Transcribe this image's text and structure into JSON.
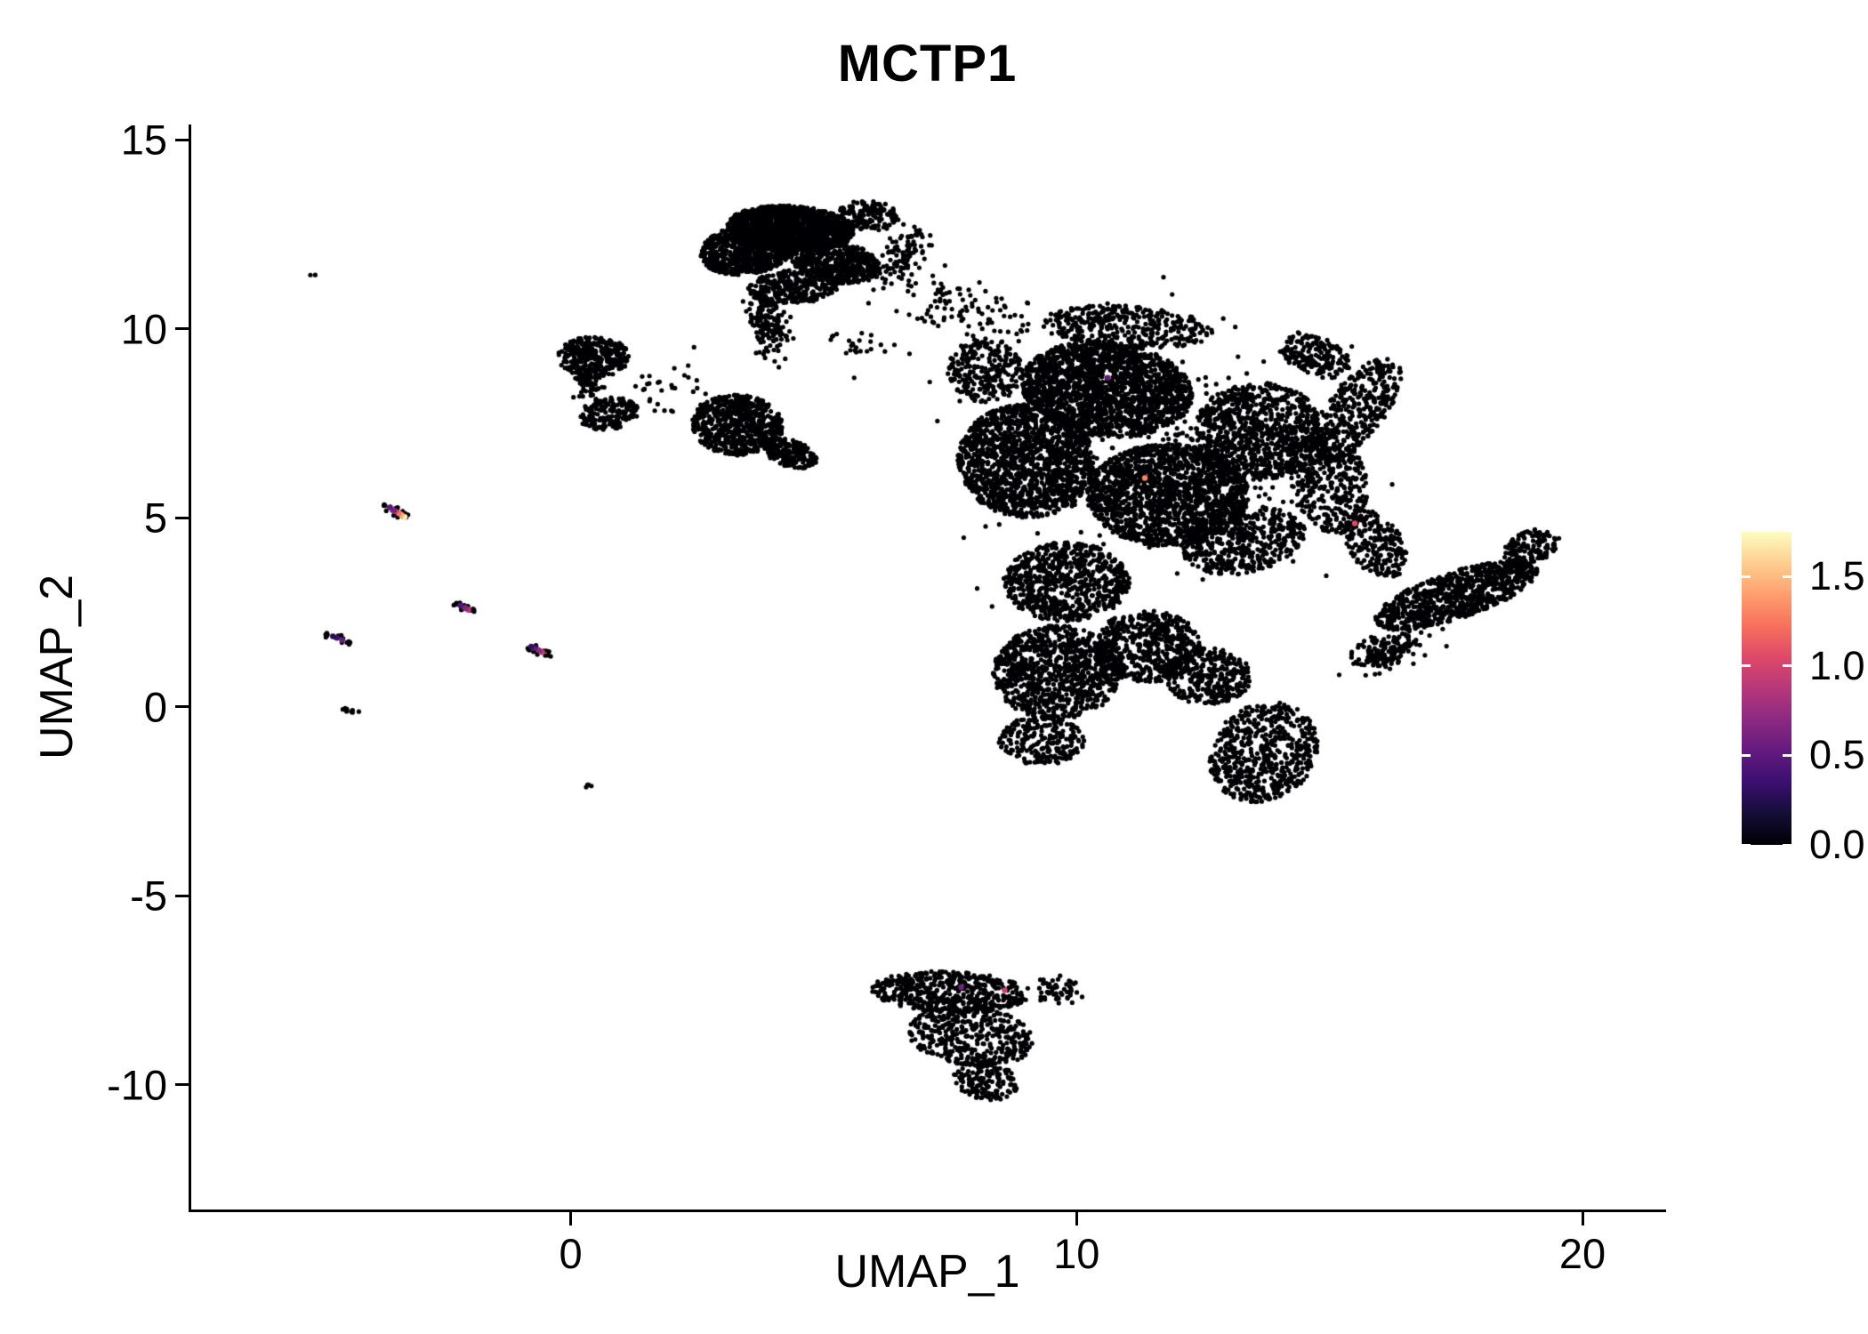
{
  "title": "MCTP1",
  "axes": {
    "xlabel": "UMAP_1",
    "ylabel": "UMAP_2",
    "x_ticks": [
      {
        "label": "0",
        "value": 0
      },
      {
        "label": "10",
        "value": 10
      },
      {
        "label": "20",
        "value": 20
      }
    ],
    "y_ticks": [
      {
        "label": "15",
        "value": 15
      },
      {
        "label": "10",
        "value": 10
      },
      {
        "label": "5",
        "value": 5
      },
      {
        "label": "0",
        "value": 0
      },
      {
        "label": "-5",
        "value": -5
      },
      {
        "label": "-10",
        "value": -10
      }
    ]
  },
  "colorbar": {
    "tick_labels": [
      {
        "label": "1.5",
        "value": 1.5
      },
      {
        "label": "1.0",
        "value": 1.0
      },
      {
        "label": "0.5",
        "value": 0.5
      },
      {
        "label": "0.0",
        "value": 0.0
      }
    ],
    "min": 0,
    "max": 1.75,
    "colormap": "magma",
    "stops": [
      "#000004",
      "#140e36",
      "#3b0f70",
      "#641a80",
      "#8c2981",
      "#b73779",
      "#de4968",
      "#f7705c",
      "#fe9f6d",
      "#fece91",
      "#fcfdbf"
    ]
  },
  "chart_data": {
    "type": "scatter",
    "title": "MCTP1",
    "xlabel": "UMAP_1",
    "ylabel": "UMAP_2",
    "xlim": [
      -7.5,
      21.6
    ],
    "ylim": [
      -13.3,
      15.4
    ],
    "grid": false,
    "legend_position": "right",
    "point_color_default": "#000004",
    "point_radius_px": 2.6,
    "note": "Single-cell UMAP feature plot; dense cell clusters approximated by generative blob parameters (data units). Nearly all cells have expression 0 (black); colored cells listed in expressing_points.",
    "clusters": [
      {
        "cx": 4.35,
        "cy": 12.65,
        "rx": 1.25,
        "ry": 0.6,
        "rot": -5,
        "n": 1500,
        "dist": "u"
      },
      {
        "cx": 3.5,
        "cy": 12.1,
        "rx": 0.95,
        "ry": 0.65,
        "rot": 15,
        "n": 800,
        "dist": "u"
      },
      {
        "cx": 5.2,
        "cy": 11.8,
        "rx": 0.95,
        "ry": 0.55,
        "rot": -20,
        "n": 550,
        "dist": "u"
      },
      {
        "cx": 4.4,
        "cy": 11.1,
        "rx": 0.9,
        "ry": 0.45,
        "rot": 5,
        "n": 300,
        "dist": "u"
      },
      {
        "cx": 5.9,
        "cy": 13.0,
        "rx": 0.6,
        "ry": 0.4,
        "rot": -10,
        "n": 150,
        "dist": "u"
      },
      {
        "cx": 3.9,
        "cy": 10.1,
        "rx": 0.4,
        "ry": 0.85,
        "rot": 10,
        "n": 150,
        "dist": "g"
      },
      {
        "cx": 6.55,
        "cy": 11.9,
        "rx": 0.45,
        "ry": 0.95,
        "rot": -25,
        "n": 110,
        "dist": "g"
      },
      {
        "cx": 7.2,
        "cy": 10.7,
        "rx": 0.8,
        "ry": 0.8,
        "rot": 0,
        "n": 45,
        "dist": "g"
      },
      {
        "cx": 5.8,
        "cy": 9.6,
        "rx": 0.8,
        "ry": 0.6,
        "rot": 0,
        "n": 25,
        "dist": "g"
      },
      {
        "cx": 0.45,
        "cy": 9.25,
        "rx": 0.7,
        "ry": 0.55,
        "rot": 0,
        "n": 340,
        "dist": "u"
      },
      {
        "cx": 0.75,
        "cy": 7.75,
        "rx": 0.6,
        "ry": 0.42,
        "rot": 15,
        "n": 170,
        "dist": "u"
      },
      {
        "cx": 0.35,
        "cy": 8.5,
        "rx": 0.3,
        "ry": 0.4,
        "rot": 0,
        "n": 55,
        "dist": "g"
      },
      {
        "cx": 3.3,
        "cy": 7.45,
        "rx": 0.9,
        "ry": 0.8,
        "rot": -10,
        "n": 650,
        "dist": "u"
      },
      {
        "cx": 4.35,
        "cy": 6.7,
        "rx": 0.55,
        "ry": 0.35,
        "rot": -25,
        "n": 180,
        "dist": "u"
      },
      {
        "cx": 1.9,
        "cy": 8.4,
        "rx": 0.9,
        "ry": 0.9,
        "rot": 0,
        "n": 30,
        "dist": "g"
      },
      {
        "cx": 10.6,
        "cy": 8.4,
        "rx": 1.7,
        "ry": 1.25,
        "rot": -12,
        "n": 1900,
        "dist": "u"
      },
      {
        "cx": 9.0,
        "cy": 6.5,
        "rx": 1.35,
        "ry": 1.5,
        "rot": 8,
        "n": 1500,
        "dist": "u"
      },
      {
        "cx": 11.8,
        "cy": 5.6,
        "rx": 1.6,
        "ry": 1.35,
        "rot": 0,
        "n": 1600,
        "dist": "u"
      },
      {
        "cx": 13.6,
        "cy": 7.3,
        "rx": 1.25,
        "ry": 1.3,
        "rot": 0,
        "n": 900,
        "dist": "u"
      },
      {
        "cx": 11.0,
        "cy": 10.05,
        "rx": 1.7,
        "ry": 0.55,
        "rot": -5,
        "n": 380,
        "dist": "u"
      },
      {
        "cx": 8.2,
        "cy": 8.9,
        "rx": 0.75,
        "ry": 0.85,
        "rot": 0,
        "n": 260,
        "dist": "u"
      },
      {
        "cx": 13.3,
        "cy": 4.4,
        "rx": 1.25,
        "ry": 0.85,
        "rot": 20,
        "n": 520,
        "dist": "u"
      },
      {
        "cx": 15.0,
        "cy": 5.9,
        "rx": 0.75,
        "ry": 1.35,
        "rot": 8,
        "n": 380,
        "dist": "u"
      },
      {
        "cx": 15.5,
        "cy": 7.8,
        "rx": 0.6,
        "ry": 1.6,
        "rot": -28,
        "n": 380,
        "dist": "u"
      },
      {
        "cx": 14.7,
        "cy": 9.3,
        "rx": 0.8,
        "ry": 0.5,
        "rot": -35,
        "n": 180,
        "dist": "u"
      },
      {
        "cx": 9.8,
        "cy": 3.3,
        "rx": 1.25,
        "ry": 1.05,
        "rot": 0,
        "n": 750,
        "dist": "u"
      },
      {
        "cx": 9.6,
        "cy": 0.9,
        "rx": 1.25,
        "ry": 1.25,
        "rot": 0,
        "n": 950,
        "dist": "u"
      },
      {
        "cx": 11.4,
        "cy": 1.6,
        "rx": 1.05,
        "ry": 0.95,
        "rot": 0,
        "n": 550,
        "dist": "u"
      },
      {
        "cx": 12.6,
        "cy": 0.8,
        "rx": 0.85,
        "ry": 0.75,
        "rot": 0,
        "n": 320,
        "dist": "u"
      },
      {
        "cx": 13.7,
        "cy": -1.2,
        "rx": 1.05,
        "ry": 1.35,
        "rot": -18,
        "n": 600,
        "dist": "u"
      },
      {
        "cx": 15.9,
        "cy": 4.3,
        "rx": 0.55,
        "ry": 0.95,
        "rot": 22,
        "n": 220,
        "dist": "u"
      },
      {
        "cx": 9.3,
        "cy": -0.9,
        "rx": 0.85,
        "ry": 0.65,
        "rot": 0,
        "n": 230,
        "dist": "u"
      },
      {
        "cx": 11.5,
        "cy": 6.5,
        "rx": 3.6,
        "ry": 3.3,
        "rot": 0,
        "n": 260,
        "dist": "g"
      },
      {
        "cx": 8.1,
        "cy": 10.4,
        "rx": 1.2,
        "ry": 0.8,
        "rot": 0,
        "n": 55,
        "dist": "g"
      },
      {
        "cx": 17.5,
        "cy": 2.95,
        "rx": 1.75,
        "ry": 0.6,
        "rot": 25,
        "n": 820,
        "dist": "u"
      },
      {
        "cx": 19.0,
        "cy": 4.2,
        "rx": 0.6,
        "ry": 0.45,
        "rot": 35,
        "n": 140,
        "dist": "u"
      },
      {
        "cx": 16.2,
        "cy": 1.5,
        "rx": 0.85,
        "ry": 0.45,
        "rot": 28,
        "n": 160,
        "dist": "g"
      },
      {
        "cx": 7.5,
        "cy": -7.55,
        "rx": 1.55,
        "ry": 0.55,
        "rot": -3,
        "n": 500,
        "dist": "u"
      },
      {
        "cx": 7.9,
        "cy": -8.7,
        "rx": 1.25,
        "ry": 0.8,
        "rot": -12,
        "n": 420,
        "dist": "u"
      },
      {
        "cx": 8.2,
        "cy": -9.9,
        "rx": 0.65,
        "ry": 0.5,
        "rot": -20,
        "n": 160,
        "dist": "u"
      },
      {
        "cx": 9.6,
        "cy": -7.5,
        "rx": 0.55,
        "ry": 0.4,
        "rot": 0,
        "n": 55,
        "dist": "g"
      },
      {
        "cx": -3.45,
        "cy": 5.15,
        "rx": 0.32,
        "ry": 0.12,
        "rot": -35,
        "n": 22,
        "dist": "u"
      },
      {
        "cx": -2.1,
        "cy": 2.62,
        "rx": 0.27,
        "ry": 0.1,
        "rot": -30,
        "n": 18,
        "dist": "u"
      },
      {
        "cx": -4.6,
        "cy": 1.8,
        "rx": 0.3,
        "ry": 0.11,
        "rot": -25,
        "n": 16,
        "dist": "u"
      },
      {
        "cx": -0.65,
        "cy": 1.5,
        "rx": 0.32,
        "ry": 0.12,
        "rot": -30,
        "n": 20,
        "dist": "u"
      },
      {
        "cx": -4.35,
        "cy": -0.1,
        "rx": 0.18,
        "ry": 0.08,
        "rot": -20,
        "n": 9,
        "dist": "u"
      },
      {
        "cx": 0.35,
        "cy": -2.1,
        "rx": 0.09,
        "ry": 0.06,
        "rot": 0,
        "n": 4,
        "dist": "u"
      },
      {
        "cx": -5.1,
        "cy": 11.4,
        "rx": 0.07,
        "ry": 0.05,
        "rot": 0,
        "n": 2,
        "dist": "u"
      }
    ],
    "expressing_points": [
      {
        "x": -3.28,
        "y": 5.02,
        "v": 1.7
      },
      {
        "x": -3.34,
        "y": 5.07,
        "v": 1.5
      },
      {
        "x": -3.37,
        "y": 5.1,
        "v": 1.4
      },
      {
        "x": -3.4,
        "y": 5.12,
        "v": 1.25
      },
      {
        "x": -3.46,
        "y": 5.17,
        "v": 1.0
      },
      {
        "x": -3.52,
        "y": 5.22,
        "v": 0.75
      },
      {
        "x": -3.49,
        "y": 5.2,
        "v": 0.6
      },
      {
        "x": -3.58,
        "y": 5.27,
        "v": 0.5
      },
      {
        "x": -2.02,
        "y": 2.56,
        "v": 0.9
      },
      {
        "x": -2.06,
        "y": 2.59,
        "v": 0.75
      },
      {
        "x": -2.1,
        "y": 2.62,
        "v": 0.65
      },
      {
        "x": -2.18,
        "y": 2.68,
        "v": 0.45
      },
      {
        "x": -4.52,
        "y": 1.76,
        "v": 0.55
      },
      {
        "x": -4.62,
        "y": 1.82,
        "v": 0.35
      },
      {
        "x": -4.7,
        "y": 1.86,
        "v": 0.25
      },
      {
        "x": -0.56,
        "y": 1.44,
        "v": 0.95
      },
      {
        "x": -0.6,
        "y": 1.47,
        "v": 0.8
      },
      {
        "x": -0.64,
        "y": 1.5,
        "v": 0.7
      },
      {
        "x": -0.72,
        "y": 1.55,
        "v": 0.5
      },
      {
        "x": -0.78,
        "y": 1.59,
        "v": 0.3
      },
      {
        "x": 10.62,
        "y": 8.7,
        "v": 0.55
      },
      {
        "x": 11.35,
        "y": 6.05,
        "v": 1.3
      },
      {
        "x": 15.5,
        "y": 4.85,
        "v": 1.05
      },
      {
        "x": 7.72,
        "y": -7.42,
        "v": 0.6
      },
      {
        "x": 8.58,
        "y": -7.5,
        "v": 0.95
      }
    ]
  }
}
